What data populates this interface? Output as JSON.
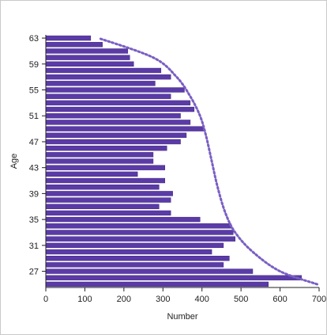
{
  "chart_data": {
    "type": "bar",
    "orientation": "horizontal",
    "title": "",
    "xlabel": "Number",
    "ylabel": "Age",
    "xlim": [
      0,
      700
    ],
    "ylim": [
      25,
      63
    ],
    "x_ticks": [
      "0",
      "100",
      "200",
      "300",
      "400",
      "500",
      "600",
      "700"
    ],
    "y_ticks": [
      "27",
      "31",
      "35",
      "39",
      "43",
      "47",
      "51",
      "55",
      "59",
      "63"
    ],
    "x_tick_values": [
      0,
      100,
      200,
      300,
      400,
      500,
      600,
      700
    ],
    "y_tick_values": [
      27,
      31,
      35,
      39,
      43,
      47,
      51,
      55,
      59,
      63
    ],
    "grid": false,
    "legend": "none",
    "colors": {
      "bar": "#5b3ba6",
      "bar_edge": "#3f2685",
      "curve": "#7a5fc4",
      "axis": "#222222"
    },
    "series": [
      {
        "values": [
          {
            "age": 25,
            "number": 570
          },
          {
            "age": 26,
            "number": 655
          },
          {
            "age": 27,
            "number": 530
          },
          {
            "age": 28,
            "number": 455
          },
          {
            "age": 29,
            "number": 470
          },
          {
            "age": 30,
            "number": 425
          },
          {
            "age": 31,
            "number": 455
          },
          {
            "age": 32,
            "number": 485
          },
          {
            "age": 33,
            "number": 480
          },
          {
            "age": 34,
            "number": 475
          },
          {
            "age": 35,
            "number": 395
          },
          {
            "age": 36,
            "number": 320
          },
          {
            "age": 37,
            "number": 290
          },
          {
            "age": 38,
            "number": 320
          },
          {
            "age": 39,
            "number": 325
          },
          {
            "age": 40,
            "number": 290
          },
          {
            "age": 41,
            "number": 305
          },
          {
            "age": 42,
            "number": 235
          },
          {
            "age": 43,
            "number": 305
          },
          {
            "age": 44,
            "number": 275
          },
          {
            "age": 45,
            "number": 275
          },
          {
            "age": 46,
            "number": 310
          },
          {
            "age": 47,
            "number": 345
          },
          {
            "age": 48,
            "number": 360
          },
          {
            "age": 49,
            "number": 405
          },
          {
            "age": 50,
            "number": 370
          },
          {
            "age": 51,
            "number": 345
          },
          {
            "age": 52,
            "number": 380
          },
          {
            "age": 53,
            "number": 370
          },
          {
            "age": 54,
            "number": 320
          },
          {
            "age": 55,
            "number": 355
          },
          {
            "age": 56,
            "number": 280
          },
          {
            "age": 57,
            "number": 320
          },
          {
            "age": 58,
            "number": 295
          },
          {
            "age": 59,
            "number": 225
          },
          {
            "age": 60,
            "number": 215
          },
          {
            "age": 61,
            "number": 210
          },
          {
            "age": 62,
            "number": 145
          },
          {
            "age": 63,
            "number": 115
          }
        ]
      }
    ],
    "curve": {
      "style": "dotted",
      "points": [
        {
          "age": 25,
          "number": 695
        },
        {
          "age": 27,
          "number": 600
        },
        {
          "age": 30,
          "number": 530
        },
        {
          "age": 33,
          "number": 485
        },
        {
          "age": 36,
          "number": 460
        },
        {
          "age": 40,
          "number": 440
        },
        {
          "age": 44,
          "number": 425
        },
        {
          "age": 48,
          "number": 410
        },
        {
          "age": 51,
          "number": 395
        },
        {
          "age": 54,
          "number": 370
        },
        {
          "age": 57,
          "number": 335
        },
        {
          "age": 60,
          "number": 275
        },
        {
          "age": 63,
          "number": 135
        }
      ]
    }
  }
}
